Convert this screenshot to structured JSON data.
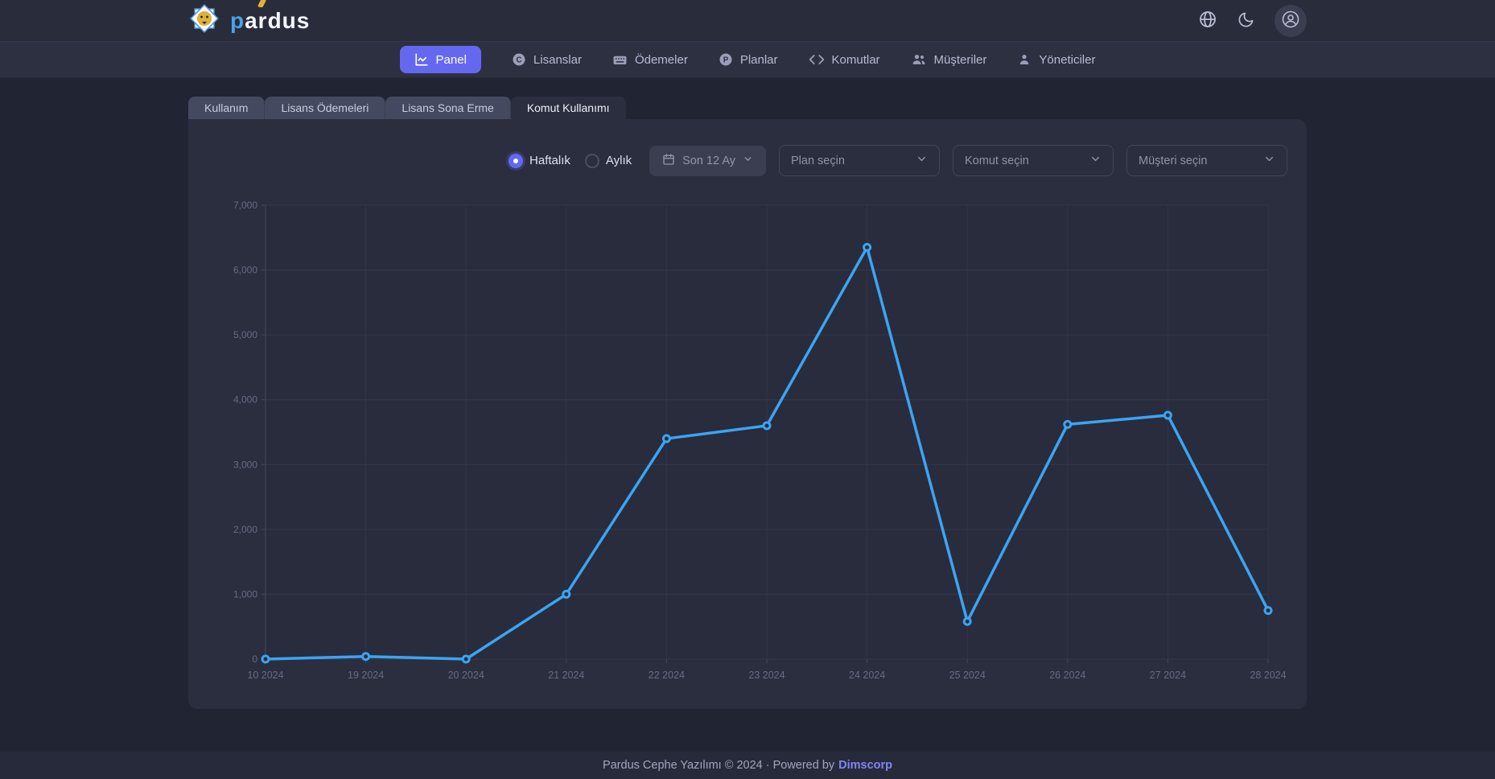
{
  "theme": {
    "accent": "#6468f1",
    "line_color": "#3aa5f4",
    "card_bg": "#2b2e3f",
    "page_bg": "#212433"
  },
  "header": {
    "brand": "pardus",
    "action_icons": [
      "language-globe",
      "dark-mode-moon",
      "user-account"
    ]
  },
  "nav": {
    "items": [
      {
        "label": "Panel",
        "icon": "line-chart-icon",
        "active": true
      },
      {
        "label": "Lisanslar",
        "icon": "license-c-icon",
        "active": false
      },
      {
        "label": "Ödemeler",
        "icon": "keyboard-icon",
        "active": false
      },
      {
        "label": "Planlar",
        "icon": "plan-p-icon",
        "active": false
      },
      {
        "label": "Komutlar",
        "icon": "code-icon",
        "active": false
      },
      {
        "label": "Müşteriler",
        "icon": "users-icon",
        "active": false
      },
      {
        "label": "Yöneticiler",
        "icon": "admin-user-icon",
        "active": false
      }
    ]
  },
  "tabs": {
    "items": [
      {
        "label": "Kullanım",
        "active": false
      },
      {
        "label": "Lisans Ödemeleri",
        "active": false
      },
      {
        "label": "Lisans Sona Erme",
        "active": false
      },
      {
        "label": "Komut Kullanımı",
        "active": true
      }
    ]
  },
  "controls": {
    "period_options": [
      {
        "label": "Haftalık",
        "selected": true
      },
      {
        "label": "Aylık",
        "selected": false
      }
    ],
    "range_button": {
      "label": "Son 12 Ay",
      "icon": "calendar-icon"
    },
    "selects": [
      {
        "placeholder": "Plan seçin"
      },
      {
        "placeholder": "Komut seçin"
      },
      {
        "placeholder": "Müşteri seçin"
      }
    ]
  },
  "chart_data": {
    "type": "line",
    "categories": [
      "10 2024",
      "19 2024",
      "20 2024",
      "21 2024",
      "22 2024",
      "23 2024",
      "24 2024",
      "25 2024",
      "26 2024",
      "27 2024",
      "28 2024"
    ],
    "values": [
      0,
      40,
      0,
      1000,
      3400,
      3600,
      6350,
      580,
      3620,
      3760,
      750
    ],
    "title": "",
    "xlabel": "",
    "ylabel": "",
    "ylim": [
      0,
      7000
    ],
    "ytick_step": 1000,
    "grid": true,
    "legend": false,
    "line_color": "#3aa5f4"
  },
  "footer": {
    "text": "Pardus Cephe Yazılımı © 2024 · Powered by",
    "link_label": "Dimscorp"
  }
}
